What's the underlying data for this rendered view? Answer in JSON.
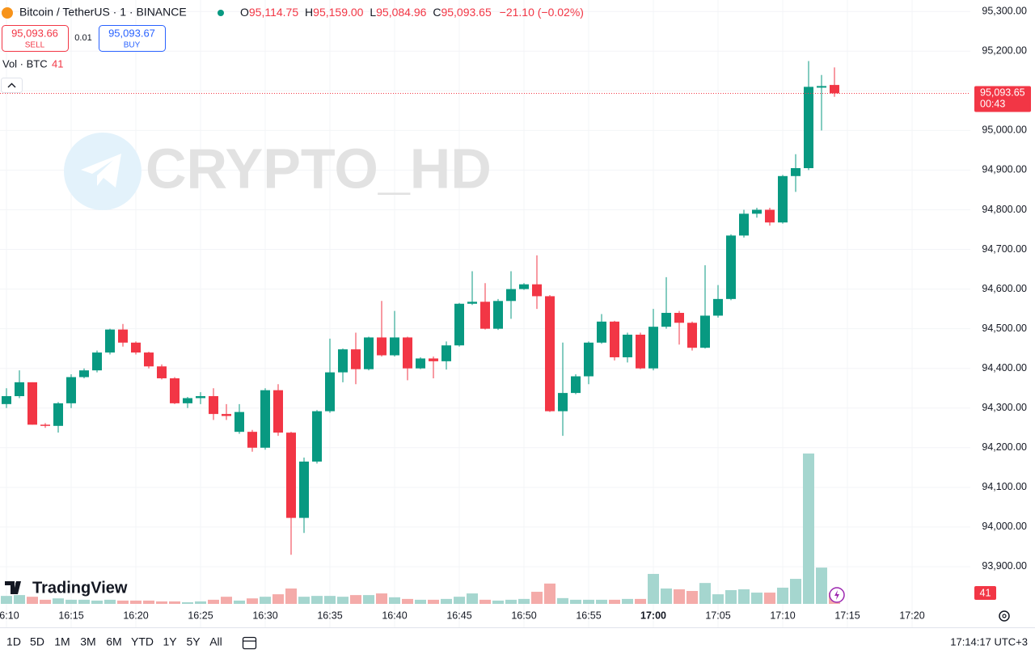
{
  "chart_data": {
    "type": "candlestick",
    "symbol": "Bitcoin / TetherUS · 1 · BINANCE",
    "header": {
      "o_label": "O",
      "o": "95,114.75",
      "h_label": "H",
      "h": "95,159.00",
      "l_label": "L",
      "l": "95,084.96",
      "c_label": "C",
      "c": "95,093.65",
      "change": "−21.10 (−0.02%)"
    },
    "trade": {
      "sell_price": "95,093.66",
      "sell": "SELL",
      "qty": "0.01",
      "buy_price": "95,093.67",
      "buy": "BUY"
    },
    "volume_legend": {
      "label": "Vol · BTC",
      "value": "41"
    },
    "watermark": "CRYPTO_HD",
    "brand": "TradingView",
    "categories": [
      "16:10",
      "16:11",
      "16:12",
      "16:13",
      "16:14",
      "16:15",
      "16:16",
      "16:17",
      "16:18",
      "16:19",
      "16:20",
      "16:21",
      "16:22",
      "16:23",
      "16:24",
      "16:25",
      "16:26",
      "16:27",
      "16:28",
      "16:29",
      "16:30",
      "16:31",
      "16:32",
      "16:33",
      "16:34",
      "16:35",
      "16:36",
      "16:37",
      "16:38",
      "16:39",
      "16:40",
      "16:41",
      "16:42",
      "16:43",
      "16:44",
      "16:45",
      "16:46",
      "16:47",
      "16:48",
      "16:49",
      "16:50",
      "16:51",
      "16:52",
      "16:53",
      "16:54",
      "16:55",
      "16:56",
      "16:57",
      "16:58",
      "16:59",
      "17:00",
      "17:01",
      "17:02",
      "17:03",
      "17:04",
      "17:05",
      "17:06",
      "17:07",
      "17:08",
      "17:09",
      "17:10",
      "17:11",
      "17:12",
      "17:13",
      "17:14"
    ],
    "open": [
      94310,
      94330,
      94365,
      94258,
      94255,
      94312,
      94378,
      94395,
      94440,
      94498,
      94465,
      94440,
      94405,
      94375,
      94312,
      94325,
      94330,
      94285,
      94240,
      94240,
      94200,
      94345,
      94238,
      94023,
      94165,
      94292,
      94390,
      94448,
      94398,
      94478,
      94433,
      94478,
      94400,
      94425,
      94418,
      94458,
      94563,
      94568,
      94500,
      94570,
      94600,
      94612,
      94582,
      94292,
      94338,
      94380,
      94465,
      94518,
      94428,
      94485,
      94400,
      94505,
      94540,
      94515,
      94452,
      94533,
      94575,
      94735,
      94790,
      94800,
      94768,
      94885,
      94905,
      95108,
      95114.75
    ],
    "high": [
      94350,
      94395,
      94365,
      94262,
      94315,
      94385,
      94400,
      94445,
      94500,
      94512,
      94468,
      94442,
      94410,
      94378,
      94328,
      94340,
      94350,
      94310,
      94310,
      94245,
      94350,
      94360,
      94240,
      94175,
      94295,
      94475,
      94450,
      94490,
      94480,
      94570,
      94545,
      94480,
      94428,
      94430,
      94468,
      94565,
      94645,
      94615,
      94575,
      94645,
      94615,
      94685,
      94585,
      94465,
      94385,
      94468,
      94537,
      94520,
      94490,
      94490,
      94550,
      94630,
      94545,
      94518,
      94660,
      94610,
      94738,
      94800,
      94805,
      94805,
      94888,
      94940,
      95175,
      95140,
      95159
    ],
    "low": [
      94300,
      94325,
      94258,
      94250,
      94238,
      94300,
      94375,
      94390,
      94435,
      94455,
      94435,
      94400,
      94372,
      94310,
      94300,
      94310,
      94270,
      94270,
      94235,
      94190,
      94195,
      94230,
      93930,
      93985,
      94160,
      94288,
      94365,
      94360,
      94395,
      94430,
      94430,
      94370,
      94398,
      94375,
      94397,
      94455,
      94560,
      94498,
      94497,
      94525,
      94598,
      94550,
      94290,
      94230,
      94335,
      94360,
      94462,
      94420,
      94415,
      94398,
      94395,
      94500,
      94460,
      94445,
      94450,
      94528,
      94572,
      94730,
      94780,
      94760,
      94765,
      94845,
      94900,
      95000,
      95084.96
    ],
    "close": [
      94330,
      94365,
      94258,
      94255,
      94312,
      94378,
      94395,
      94440,
      94498,
      94465,
      94440,
      94405,
      94375,
      94312,
      94325,
      94330,
      94285,
      94280,
      94290,
      94200,
      94345,
      94238,
      94023,
      94165,
      94292,
      94390,
      94448,
      94398,
      94478,
      94433,
      94478,
      94400,
      94425,
      94418,
      94458,
      94563,
      94568,
      94500,
      94570,
      94600,
      94612,
      94582,
      94292,
      94338,
      94380,
      94465,
      94518,
      94428,
      94485,
      94400,
      94505,
      94540,
      94515,
      94452,
      94533,
      94575,
      94735,
      94790,
      94800,
      94768,
      94885,
      94905,
      95110,
      95112,
      95093.65
    ],
    "volume": [
      29,
      32,
      26,
      15,
      20,
      15,
      15,
      12,
      15,
      12,
      12,
      12,
      9,
      9,
      6,
      9,
      15,
      26,
      12,
      20,
      26,
      35,
      56,
      26,
      29,
      29,
      26,
      32,
      32,
      38,
      24,
      18,
      15,
      15,
      18,
      26,
      38,
      15,
      12,
      15,
      18,
      44,
      74,
      21,
      15,
      15,
      15,
      15,
      18,
      18,
      109,
      56,
      53,
      47,
      76,
      35,
      50,
      53,
      41,
      41,
      59,
      91,
      547,
      132,
      41
    ],
    "up_color": "#089981",
    "down_color": "#f23645",
    "up_volume_color": "#a5d6cf",
    "down_volume_color": "#f4aba9",
    "ylim": [
      93747,
      95329
    ],
    "yticks": [
      {
        "value": 93900,
        "label": "93,900.00"
      },
      {
        "value": 94000,
        "label": "94,000.00"
      },
      {
        "value": 94100,
        "label": "94,100.00"
      },
      {
        "value": 94200,
        "label": "94,200.00"
      },
      {
        "value": 94300,
        "label": "94,300.00"
      },
      {
        "value": 94400,
        "label": "94,400.00"
      },
      {
        "value": 94500,
        "label": "94,500.00"
      },
      {
        "value": 94600,
        "label": "94,600.00"
      },
      {
        "value": 94700,
        "label": "94,700.00"
      },
      {
        "value": 94800,
        "label": "94,800.00"
      },
      {
        "value": 94900,
        "label": "94,900.00"
      },
      {
        "value": 95000,
        "label": "95,000.00"
      },
      {
        "value": 95100,
        "label": "95,100.00"
      },
      {
        "value": 95200,
        "label": "95,200.00"
      },
      {
        "value": 95300,
        "label": "95,300.00"
      }
    ],
    "vol_ylim": [
      0,
      2000
    ],
    "xticks": [
      "16:10",
      "16:15",
      "16:20",
      "16:25",
      "16:30",
      "16:35",
      "16:40",
      "16:45",
      "16:50",
      "16:55",
      "17:00",
      "17:05",
      "17:10",
      "17:15",
      "17:20"
    ],
    "last_price": {
      "value": 95093.65,
      "label": "95,093.65",
      "countdown": "00:43"
    },
    "last_volume": "41",
    "grid": true,
    "ranges": [
      "1D",
      "5D",
      "1M",
      "3M",
      "6M",
      "YTD",
      "1Y",
      "5Y",
      "All"
    ],
    "clock": "17:14:17 UTC+3"
  }
}
